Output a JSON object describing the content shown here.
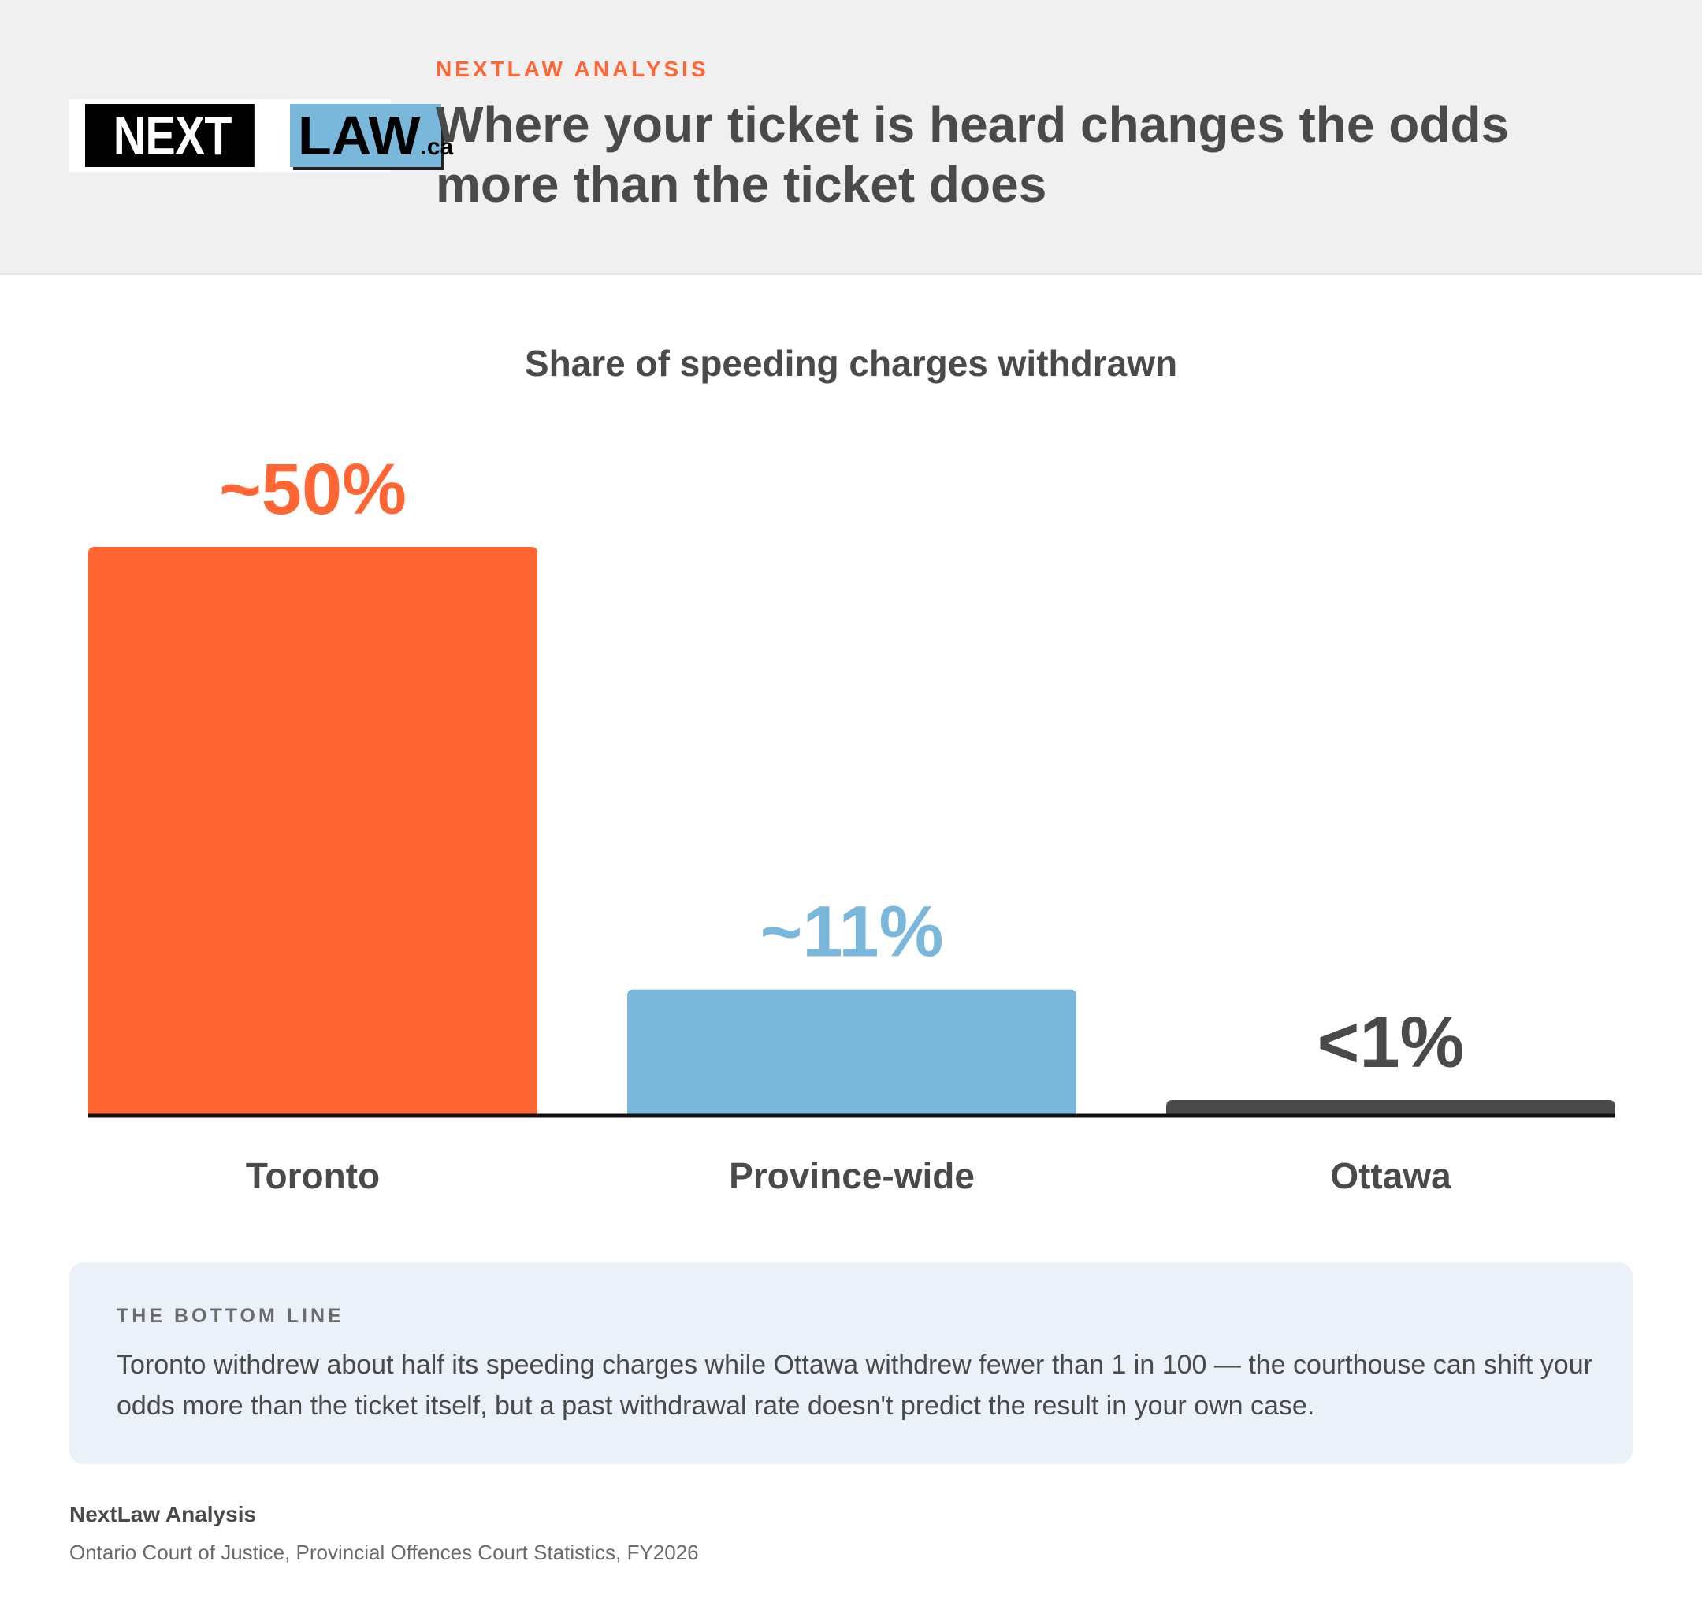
{
  "header": {
    "logo": {
      "next": "NEXT",
      "law": "LAW",
      "tld": ".ca"
    },
    "eyebrow": "NEXTLAW ANALYSIS",
    "headline": "Where your ticket is heard changes the odds more than the ticket does"
  },
  "chart_data": {
    "type": "bar",
    "title": "Share of speeding charges withdrawn",
    "xlabel": "",
    "ylabel": "",
    "categories": [
      "Toronto",
      "Province-wide",
      "Ottawa"
    ],
    "values": [
      50,
      11,
      1
    ],
    "value_labels": [
      "~50%",
      "~11%",
      "<1%"
    ],
    "colors": [
      "#ff6633",
      "#7ab8db",
      "#4a4a4a"
    ],
    "ylim": [
      0,
      50
    ],
    "grid": false,
    "legend": "none"
  },
  "bottom_line": {
    "eyebrow": "THE BOTTOM LINE",
    "text": "Toronto withdrew about half its speeding charges while Ottawa withdrew fewer than 1 in 100 — the courthouse can shift your odds more than the ticket itself, but a past withdrawal rate doesn't predict the result in your own case."
  },
  "footer": {
    "title": "NextLaw Analysis",
    "source": "Ontario Court of Justice, Provincial Offences Court Statistics, FY2026"
  }
}
